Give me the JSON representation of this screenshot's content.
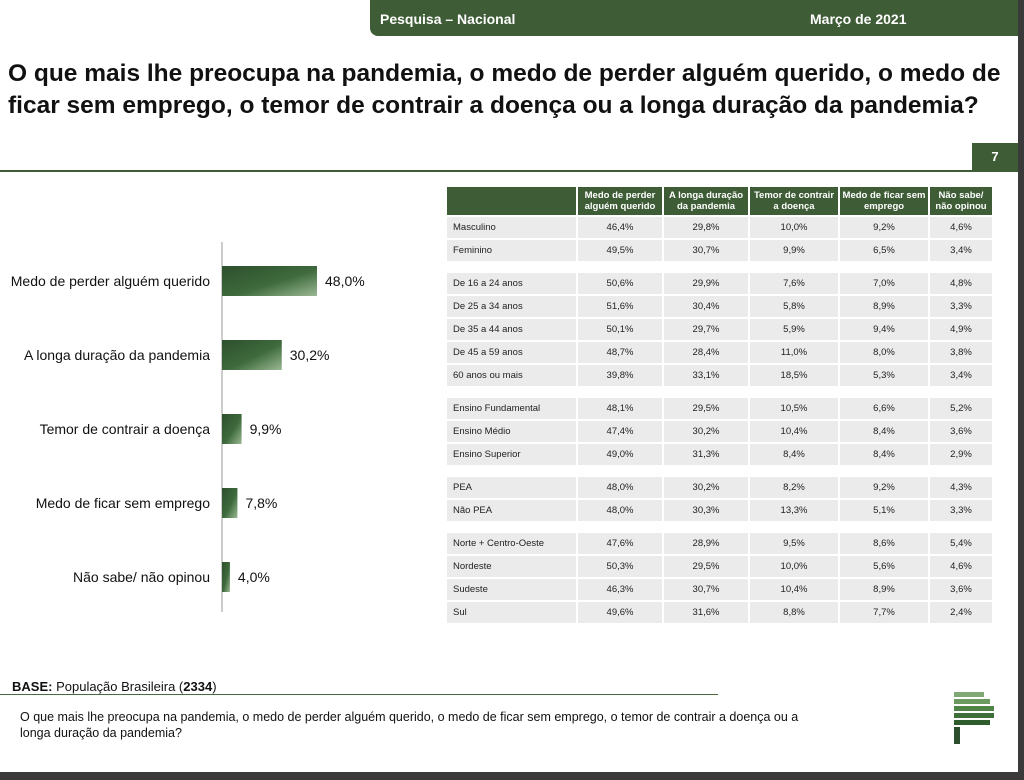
{
  "header": {
    "left": "Pesquisa – Nacional",
    "right": "Março de 2021"
  },
  "title": "O que mais lhe preocupa na pandemia, o medo de perder alguém querido, o medo de ficar sem emprego, o temor de contrair a doença ou a longa duração da pandemia?",
  "page_number": "7",
  "colors": {
    "accent": "#3e5c36",
    "bar_dark": "#2d4f2d",
    "bar_light": "#9bb894",
    "cell": "#ebebeb"
  },
  "chart_data": {
    "type": "bar",
    "orientation": "horizontal",
    "categories": [
      "Medo de perder alguém querido",
      "A longa duração da pandemia",
      "Temor de contrair a doença",
      "Medo de ficar sem emprego",
      "Não sabe/ não opinou"
    ],
    "values": [
      48.0,
      30.2,
      9.9,
      7.8,
      4.0
    ],
    "value_labels": [
      "48,0%",
      "30,2%",
      "9,9%",
      "7,8%",
      "4,0%"
    ]
  },
  "table": {
    "columns": [
      "Medo de perder alguém querido",
      "A longa duração da pandemia",
      "Temor de contrair a doença",
      "Medo de ficar sem emprego",
      "Não sabe/ não opinou"
    ],
    "groups": [
      {
        "rows": [
          {
            "label": "Masculino",
            "values": [
              "46,4%",
              "29,8%",
              "10,0%",
              "9,2%",
              "4,6%"
            ]
          },
          {
            "label": "Feminino",
            "values": [
              "49,5%",
              "30,7%",
              "9,9%",
              "6,5%",
              "3,4%"
            ]
          }
        ]
      },
      {
        "rows": [
          {
            "label": "De 16 a 24 anos",
            "values": [
              "50,6%",
              "29,9%",
              "7,6%",
              "7,0%",
              "4,8%"
            ]
          },
          {
            "label": "De 25 a 34 anos",
            "values": [
              "51,6%",
              "30,4%",
              "5,8%",
              "8,9%",
              "3,3%"
            ]
          },
          {
            "label": "De 35 a 44 anos",
            "values": [
              "50,1%",
              "29,7%",
              "5,9%",
              "9,4%",
              "4,9%"
            ]
          },
          {
            "label": "De 45 a 59 anos",
            "values": [
              "48,7%",
              "28,4%",
              "11,0%",
              "8,0%",
              "3,8%"
            ]
          },
          {
            "label": "60 anos ou mais",
            "values": [
              "39,8%",
              "33,1%",
              "18,5%",
              "5,3%",
              "3,4%"
            ]
          }
        ]
      },
      {
        "rows": [
          {
            "label": "Ensino Fundamental",
            "values": [
              "48,1%",
              "29,5%",
              "10,5%",
              "6,6%",
              "5,2%"
            ]
          },
          {
            "label": "Ensino Médio",
            "values": [
              "47,4%",
              "30,2%",
              "10,4%",
              "8,4%",
              "3,6%"
            ]
          },
          {
            "label": "Ensino Superior",
            "values": [
              "49,0%",
              "31,3%",
              "8,4%",
              "8,4%",
              "2,9%"
            ]
          }
        ]
      },
      {
        "rows": [
          {
            "label": "PEA",
            "values": [
              "48,0%",
              "30,2%",
              "8,2%",
              "9,2%",
              "4,3%"
            ]
          },
          {
            "label": "Não PEA",
            "values": [
              "48,0%",
              "30,3%",
              "13,3%",
              "5,1%",
              "3,3%"
            ]
          }
        ]
      },
      {
        "rows": [
          {
            "label": "Norte + Centro-Oeste",
            "values": [
              "47,6%",
              "28,9%",
              "9,5%",
              "8,6%",
              "5,4%"
            ]
          },
          {
            "label": "Nordeste",
            "values": [
              "50,3%",
              "29,5%",
              "10,0%",
              "5,6%",
              "4,6%"
            ]
          },
          {
            "label": "Sudeste",
            "values": [
              "46,3%",
              "30,7%",
              "10,4%",
              "8,9%",
              "3,6%"
            ]
          },
          {
            "label": "Sul",
            "values": [
              "49,6%",
              "31,6%",
              "8,8%",
              "7,7%",
              "2,4%"
            ]
          }
        ]
      }
    ]
  },
  "base": {
    "label": "BASE:",
    "text": "População Brasileira (",
    "count": "2334",
    "close": ")"
  },
  "footer_question": "O que mais lhe preocupa na pandemia, o medo de perder alguém querido, o medo de ficar sem emprego, o temor de contrair a doença ou a longa duração da pandemia?",
  "logo": "poderdata-logo"
}
